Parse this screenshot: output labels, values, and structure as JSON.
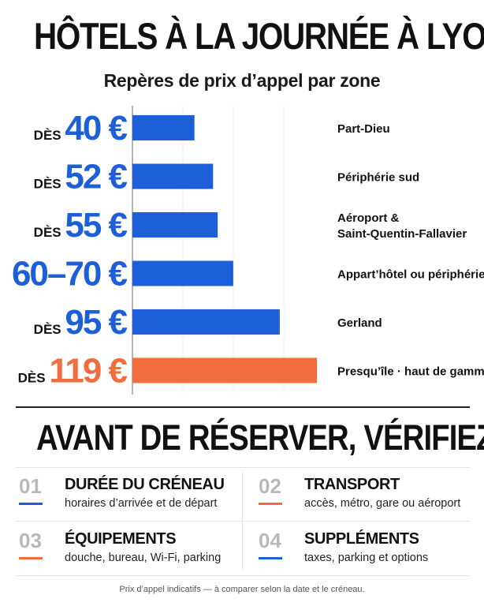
{
  "colors": {
    "blue": "#1c5fd8",
    "orange": "#f26d3d",
    "title": "#111111",
    "muted_number": "#b8b8b8"
  },
  "title": "HÔTELS À LA JOURNÉE À LYON",
  "subtitle": "Repères de prix d’appel par zone",
  "chart_data": {
    "type": "bar",
    "orientation": "horizontal",
    "title": "HÔTELS À LA JOURNÉE À LYON",
    "subtitle": "Repères de prix d’appel par zone",
    "unit": "€",
    "categories": [
      "Part-Dieu",
      "Périphérie sud",
      "Aéroport & Saint-Quentin-Fallavier",
      "Appart’hôtel ou périphérie",
      "Gerland",
      "Presqu’île · haut de gamme"
    ],
    "category_lines": [
      [
        "Part-Dieu"
      ],
      [
        "Périphérie sud"
      ],
      [
        "Aéroport &",
        "Saint-Quentin-Fallavier"
      ],
      [
        "Appart’hôtel ou périphérie"
      ],
      [
        "Gerland"
      ],
      [
        "Presqu’île · haut de gamme"
      ]
    ],
    "values": [
      40,
      52,
      55,
      65,
      95,
      119
    ],
    "value_labels": [
      {
        "prefix": "DÈS",
        "price": "40 €"
      },
      {
        "prefix": "DÈS",
        "price": "52 €"
      },
      {
        "prefix": "DÈS",
        "price": "55 €"
      },
      {
        "prefix": "",
        "price": "60–70 €"
      },
      {
        "prefix": "DÈS",
        "price": "95 €"
      },
      {
        "prefix": "DÈS",
        "price": "119 €"
      }
    ],
    "highlight": [
      false,
      false,
      false,
      false,
      false,
      true
    ],
    "xlim": [
      0,
      122
    ],
    "grid": true
  },
  "checklist": {
    "title": "AVANT DE RÉSERVER, VÉRIFIEZ",
    "items": [
      {
        "number": "01",
        "title": "DURÉE DU CRÉNEAU",
        "description": "horaires d’arrivée et de départ",
        "accent": "#1c5fd8"
      },
      {
        "number": "02",
        "title": "TRANSPORT",
        "description": "accès, métro, gare ou aéroport",
        "accent": "#f26d3d"
      },
      {
        "number": "03",
        "title": "ÉQUIPEMENTS",
        "description": "douche, bureau, Wi-Fi, parking",
        "accent": "#f26d3d"
      },
      {
        "number": "04",
        "title": "SUPPLÉMENTS",
        "description": "taxes, parking et options",
        "accent": "#1c5fd8"
      }
    ]
  },
  "footnote": "Prix d’appel indicatifs — à comparer selon la date et le créneau."
}
